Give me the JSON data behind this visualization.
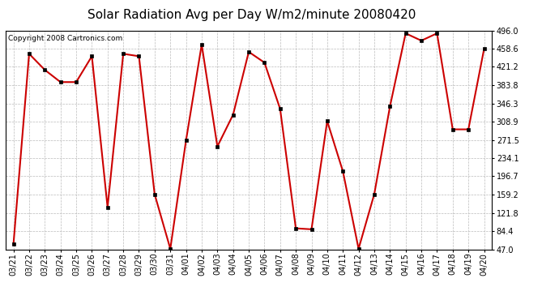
{
  "title": "Solar Radiation Avg per Day W/m2/minute 20080420",
  "copyright": "Copyright 2008 Cartronics.com",
  "labels": [
    "03/21",
    "03/22",
    "03/23",
    "03/24",
    "03/25",
    "03/26",
    "03/27",
    "03/28",
    "03/29",
    "03/30",
    "03/31",
    "04/01",
    "04/02",
    "04/03",
    "04/04",
    "04/05",
    "04/06",
    "04/07",
    "04/08",
    "04/09",
    "04/10",
    "04/11",
    "04/12",
    "04/13",
    "04/14",
    "04/15",
    "04/16",
    "04/17",
    "04/18",
    "04/19",
    "04/20"
  ],
  "values": [
    57,
    448,
    415,
    390,
    390,
    443,
    133,
    448,
    443,
    160,
    48,
    270,
    467,
    258,
    323,
    452,
    430,
    335,
    90,
    88,
    310,
    207,
    48,
    160,
    340,
    490,
    475,
    490,
    293,
    293,
    458
  ],
  "line_color": "#cc0000",
  "marker_color": "#000000",
  "bg_color": "#ffffff",
  "grid_color": "#bbbbbb",
  "ytick_labels": [
    "47.0",
    "84.4",
    "121.8",
    "159.2",
    "196.7",
    "234.1",
    "271.5",
    "308.9",
    "346.3",
    "383.8",
    "421.2",
    "458.6",
    "496.0"
  ],
  "ytick_values": [
    47.0,
    84.4,
    121.8,
    159.2,
    196.7,
    234.1,
    271.5,
    308.9,
    346.3,
    383.8,
    421.2,
    458.6,
    496.0
  ],
  "ylim": [
    47.0,
    496.0
  ],
  "title_fontsize": 11,
  "copyright_fontsize": 6.5,
  "tick_fontsize": 7
}
